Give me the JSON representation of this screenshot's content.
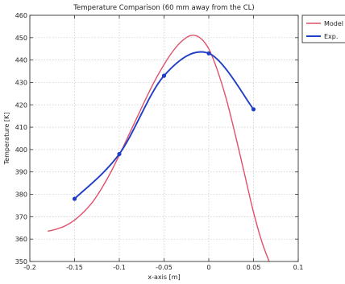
{
  "chart_data": {
    "type": "line",
    "title": "Temperature Comparison (60 mm away from the CL)",
    "xlabel": "x-axis [m]",
    "ylabel": "Temperature [K]",
    "xlim": [
      -0.2,
      0.1
    ],
    "ylim": [
      350,
      460
    ],
    "xticks": [
      -0.2,
      -0.15,
      -0.1,
      -0.05,
      0,
      0.05,
      0.1
    ],
    "xtick_labels": [
      "-0.2",
      "-0.15",
      "-0.1",
      "-0.05",
      "0",
      "0.05",
      "0.1"
    ],
    "yticks": [
      350,
      360,
      370,
      380,
      390,
      400,
      410,
      420,
      430,
      440,
      450,
      460
    ],
    "grid": true,
    "legend_position": "outside top-right",
    "series": [
      {
        "name": "Model",
        "color": "#e0506a",
        "markers": false,
        "x": [
          -0.18,
          -0.17,
          -0.16,
          -0.15,
          -0.14,
          -0.13,
          -0.12,
          -0.11,
          -0.1,
          -0.09,
          -0.08,
          -0.07,
          -0.06,
          -0.05,
          -0.04,
          -0.03,
          -0.02,
          -0.01,
          0.0,
          0.01,
          0.02,
          0.03,
          0.04,
          0.05,
          0.06,
          0.07
        ],
        "y": [
          363.5,
          364.5,
          366.0,
          368.5,
          372.0,
          376.5,
          382.5,
          389.5,
          397.5,
          406.0,
          414.5,
          423.0,
          431.0,
          438.0,
          444.0,
          448.5,
          451.0,
          450.0,
          445.0,
          435.0,
          422.0,
          406.0,
          389.0,
          372.0,
          358.0,
          347.5
        ]
      },
      {
        "name": "Exp.",
        "color": "#1f3fc4",
        "markers": true,
        "x": [
          -0.15,
          -0.1,
          -0.05,
          0.0,
          0.05
        ],
        "y": [
          378,
          398,
          433,
          443,
          418
        ]
      }
    ]
  }
}
